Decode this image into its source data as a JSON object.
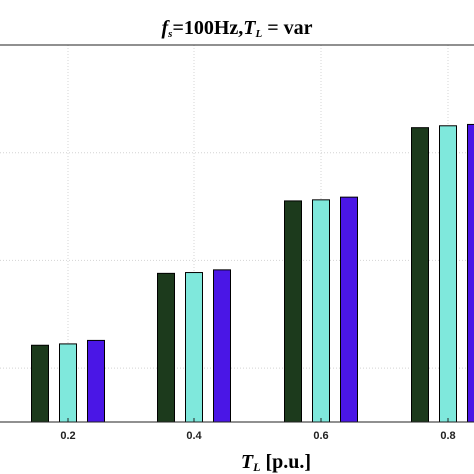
{
  "chart_data": {
    "type": "bar",
    "title": "fs=100Hz, TL = var",
    "title_parts": {
      "f": "f",
      "f_sub": "s",
      "eq1": "=100Hz,",
      "t": "T",
      "t_sub": "L",
      "eq2": " = var"
    },
    "xlabel": "TL [p.u.]",
    "xlabel_parts": {
      "t": "T",
      "t_sub": "L",
      "unit": " [p.u.]"
    },
    "ylabel": "",
    "categories": [
      "0.2",
      "0.4",
      "0.6",
      "0.8"
    ],
    "series": [
      {
        "values": [
          0.285,
          0.552,
          0.821,
          1.093
        ],
        "color": "#1c3a1c"
      },
      {
        "values": [
          0.29,
          0.555,
          0.825,
          1.1
        ],
        "color": "#7fe8dc"
      },
      {
        "values": [
          0.303,
          0.565,
          0.835,
          1.105
        ],
        "color": "#4a16e6"
      }
    ],
    "ylim": [
      0,
      1.4
    ],
    "y_gridlines": [
      0.2,
      0.6,
      1.0
    ],
    "grid": true,
    "legend": "none"
  }
}
